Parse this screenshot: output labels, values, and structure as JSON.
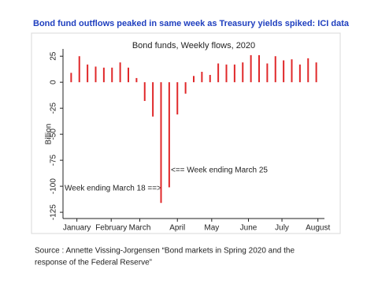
{
  "title": "Bond fund outflows peaked in same week as Treasury yields spiked:  ICI data",
  "source": [
    "Source : Annette Vissing-Jorgensen “Bond markets in Spring 2020 and the",
    "response of the Federal Reserve”"
  ],
  "chart_data": {
    "type": "bar",
    "title": "Bond funds, Weekly flows, 2020",
    "y_label": "Billion",
    "color": "#e0282a",
    "x": [
      1,
      2,
      3,
      4,
      5,
      6,
      7,
      8,
      9,
      10,
      11,
      12,
      13,
      14,
      15,
      16,
      17,
      18,
      19,
      20,
      21,
      22,
      23,
      24,
      25,
      26,
      27,
      28,
      29,
      30,
      31
    ],
    "values": [
      9,
      25,
      17,
      15,
      14,
      14,
      19,
      14,
      4,
      -18,
      -33,
      -116,
      -101,
      -31,
      -11,
      6,
      10,
      7,
      18,
      17,
      17,
      19,
      26,
      26,
      18,
      25,
      21,
      22,
      17,
      23,
      19
    ],
    "xlim": [
      0,
      32
    ],
    "xticks": [
      {
        "value": 1.7,
        "label": "January"
      },
      {
        "value": 5.9,
        "label": "February"
      },
      {
        "value": 9.4,
        "label": "March"
      },
      {
        "value": 14.0,
        "label": "April"
      },
      {
        "value": 18.2,
        "label": "May"
      },
      {
        "value": 22.7,
        "label": "June"
      },
      {
        "value": 26.8,
        "label": "July"
      },
      {
        "value": 31.2,
        "label": "August"
      }
    ],
    "ylim": [
      -131,
      32
    ],
    "yticks": [
      25,
      0,
      -25,
      -50,
      -75,
      -100,
      -125
    ],
    "annotations": [
      "<== Week ending March 25",
      "Week ending March 18 ==>"
    ]
  }
}
